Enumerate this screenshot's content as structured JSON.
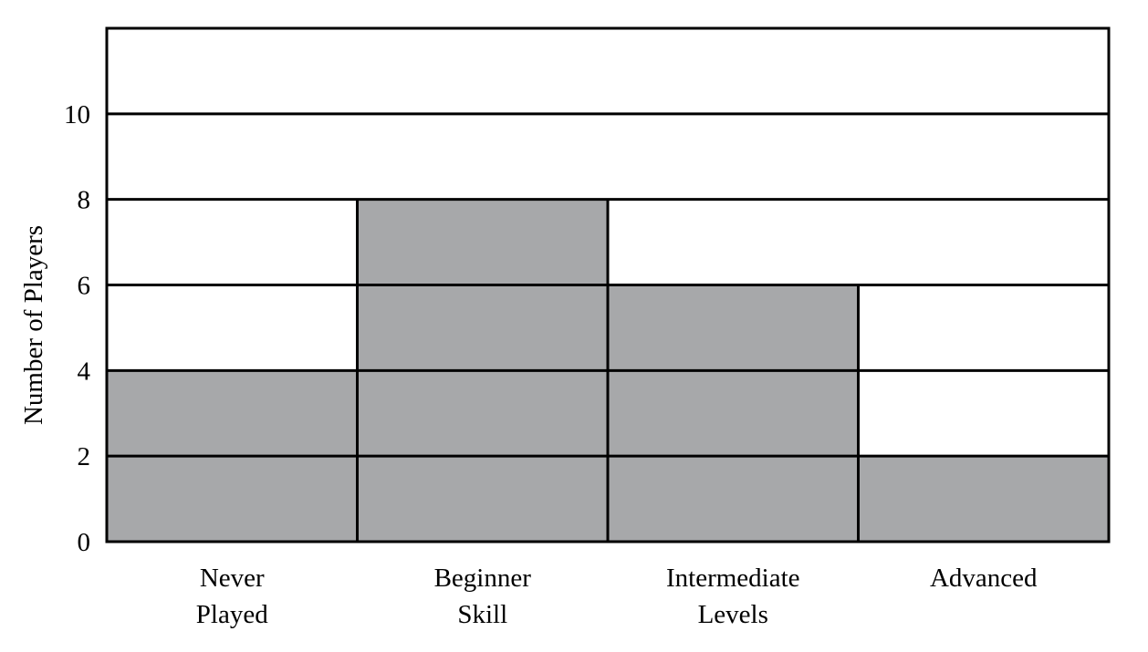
{
  "chart_data": {
    "type": "bar",
    "title": "",
    "xlabel": "",
    "ylabel": "Number of Players",
    "categories": [
      [
        "Never",
        "Played"
      ],
      [
        "Beginner",
        "Skill"
      ],
      [
        "Intermediate",
        "Levels"
      ],
      [
        "Advanced"
      ]
    ],
    "values": [
      4,
      8,
      6,
      2
    ],
    "ylim": [
      0,
      12
    ],
    "yticks": [
      0,
      2,
      4,
      6,
      8,
      10
    ],
    "grid": true,
    "colors": {
      "bar_fill": "#a7a8aa",
      "outline": "#000000",
      "background": "#ffffff"
    }
  }
}
